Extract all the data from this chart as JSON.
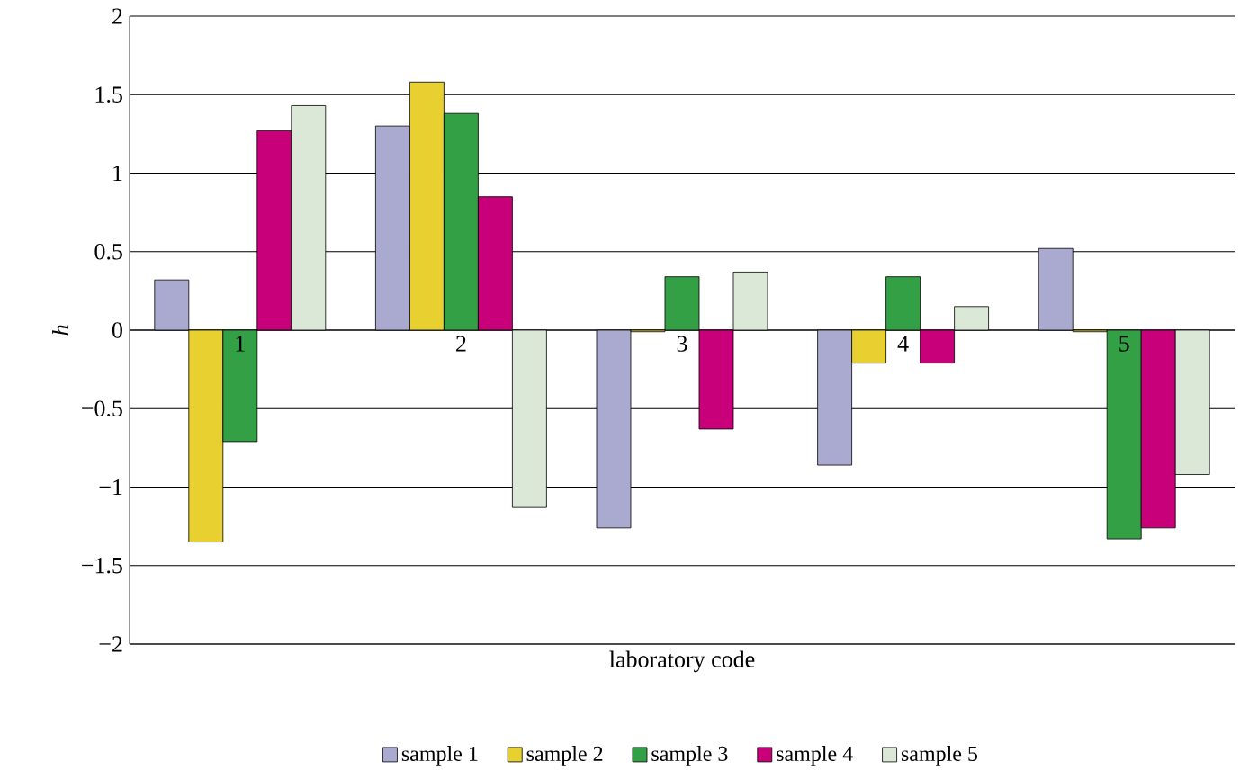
{
  "chart_data": {
    "type": "bar",
    "xlabel": "laboratory code",
    "ylabel": "h",
    "categories": [
      "1",
      "2",
      "3",
      "4",
      "5"
    ],
    "series": [
      {
        "name": "sample 1",
        "color": "#aaa9d0",
        "values": [
          0.32,
          1.3,
          -1.26,
          -0.86,
          0.52
        ]
      },
      {
        "name": "sample 2",
        "color": "#e8d030",
        "values": [
          -1.35,
          1.58,
          -0.01,
          -0.21,
          -0.01
        ]
      },
      {
        "name": "sample 3",
        "color": "#33a045",
        "values": [
          -0.71,
          1.38,
          0.34,
          0.34,
          -1.33
        ]
      },
      {
        "name": "sample 4",
        "color": "#c8007a",
        "values": [
          1.27,
          0.85,
          -0.63,
          -0.21,
          -1.26
        ]
      },
      {
        "name": "sample 5",
        "color": "#dbe8d8",
        "values": [
          1.43,
          -1.13,
          0.37,
          0.15,
          -0.92
        ]
      }
    ],
    "ylim": [
      -2,
      2
    ],
    "yticks": [
      {
        "value": -2,
        "label": "−2"
      },
      {
        "value": -1.5,
        "label": "−1.5"
      },
      {
        "value": -1,
        "label": "−1"
      },
      {
        "value": -0.5,
        "label": "−0.5"
      },
      0,
      0.5,
      1,
      1.5,
      2
    ],
    "grid": "y",
    "legend": "bottom"
  }
}
